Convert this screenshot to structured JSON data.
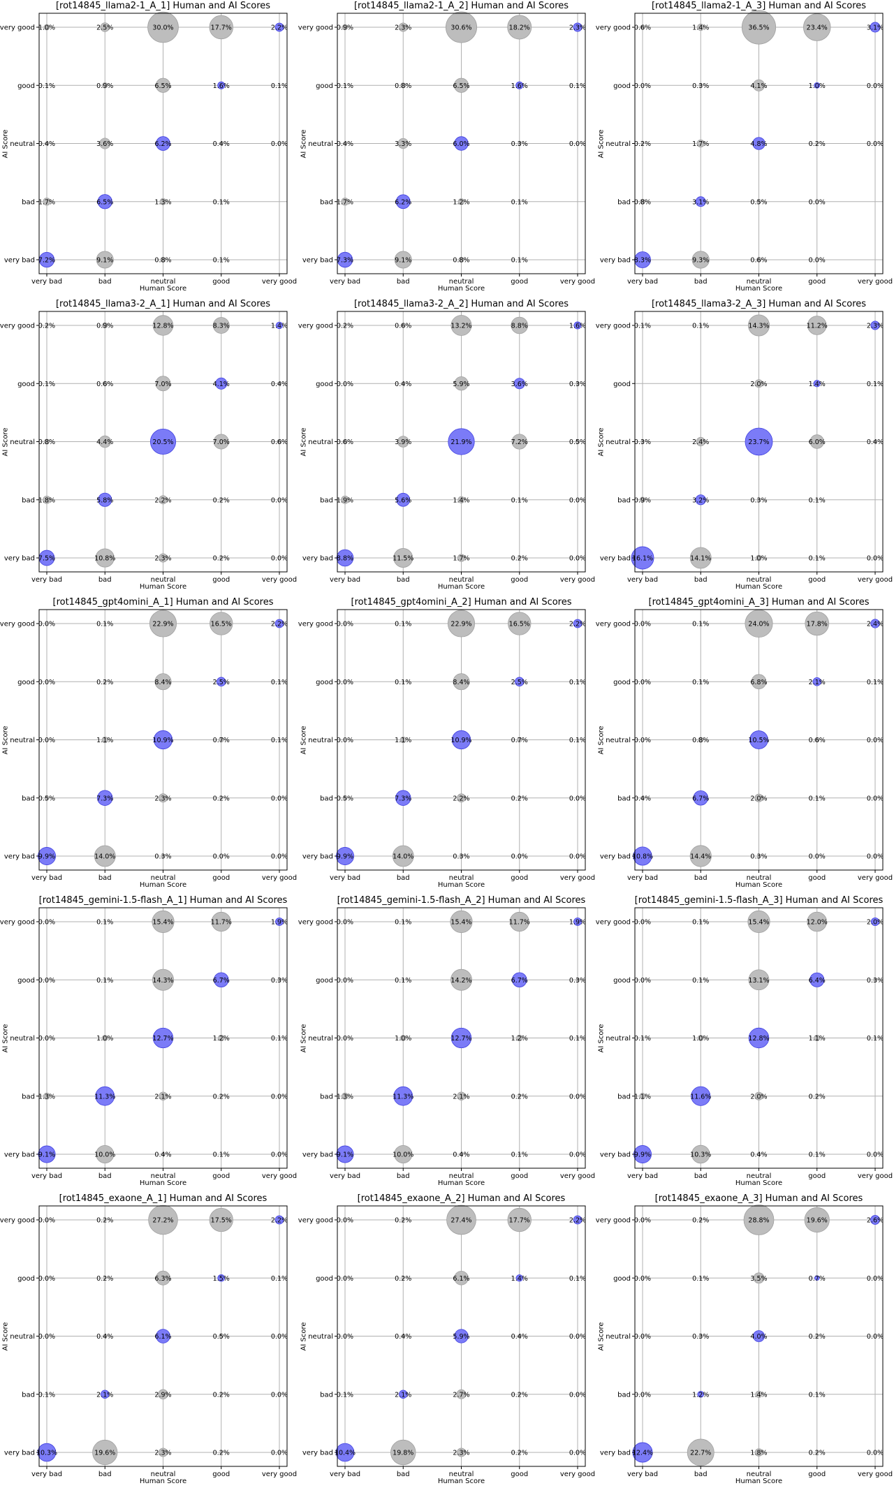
{
  "chart_data": [
    {
      "type": "scatter",
      "title": "[rot14845_llama2-1_A_1] Human and AI Scores",
      "xlabel": "Human Score",
      "ylabel": "AI Score",
      "categories": [
        "very bad",
        "bad",
        "neutral",
        "good",
        "very good"
      ],
      "values": [
        [
          7.2,
          9.1,
          0.8,
          0.1,
          null
        ],
        [
          1.7,
          6.5,
          1.3,
          0.1,
          null
        ],
        [
          0.4,
          3.6,
          6.2,
          0.4,
          0.0
        ],
        [
          0.1,
          0.9,
          6.5,
          1.6,
          0.1
        ],
        [
          1.0,
          2.5,
          30.0,
          17.7,
          2.2
        ]
      ]
    },
    {
      "type": "scatter",
      "title": "[rot14845_llama2-1_A_2] Human and AI Scores",
      "xlabel": "Human Score",
      "ylabel": "AI Score",
      "categories": [
        "very bad",
        "bad",
        "neutral",
        "good",
        "very good"
      ],
      "values": [
        [
          7.3,
          9.1,
          0.8,
          0.1,
          null
        ],
        [
          1.7,
          6.2,
          1.2,
          0.1,
          null
        ],
        [
          0.4,
          3.3,
          6.0,
          0.3,
          0.0
        ],
        [
          0.1,
          0.8,
          6.5,
          1.6,
          0.1
        ],
        [
          0.9,
          2.3,
          30.6,
          18.2,
          2.3
        ]
      ]
    },
    {
      "type": "scatter",
      "title": "[rot14845_llama2-1_A_3] Human and AI Scores",
      "xlabel": "Human Score",
      "ylabel": "AI Score",
      "categories": [
        "very bad",
        "bad",
        "neutral",
        "good",
        "very good"
      ],
      "values": [
        [
          8.3,
          9.3,
          0.6,
          0.0,
          null
        ],
        [
          0.8,
          3.1,
          0.5,
          0.0,
          null
        ],
        [
          0.2,
          1.7,
          4.8,
          0.2,
          0.0
        ],
        [
          0.0,
          0.3,
          4.1,
          1.0,
          0.0
        ],
        [
          0.6,
          1.4,
          36.5,
          23.4,
          3.1
        ]
      ]
    },
    {
      "type": "scatter",
      "title": "[rot14845_llama3-2_A_1] Human and AI Scores",
      "xlabel": "Human Score",
      "ylabel": "AI Score",
      "categories": [
        "very bad",
        "bad",
        "neutral",
        "good",
        "very good"
      ],
      "values": [
        [
          7.5,
          10.8,
          2.3,
          0.2,
          0.0
        ],
        [
          1.8,
          5.8,
          2.2,
          0.2,
          0.0
        ],
        [
          0.8,
          4.4,
          20.5,
          7.0,
          0.6
        ],
        [
          0.1,
          0.6,
          7.0,
          4.1,
          0.4
        ],
        [
          0.2,
          0.9,
          12.8,
          8.3,
          1.4
        ]
      ]
    },
    {
      "type": "scatter",
      "title": "[rot14845_llama3-2_A_2] Human and AI Scores",
      "xlabel": "Human Score",
      "ylabel": "AI Score",
      "categories": [
        "very bad",
        "bad",
        "neutral",
        "good",
        "very good"
      ],
      "values": [
        [
          8.8,
          11.5,
          1.7,
          0.2,
          0.0
        ],
        [
          1.9,
          5.6,
          1.4,
          0.1,
          0.0
        ],
        [
          0.6,
          3.9,
          21.9,
          7.2,
          0.5
        ],
        [
          0.0,
          0.4,
          5.9,
          3.6,
          0.3
        ],
        [
          0.2,
          0.6,
          13.2,
          8.8,
          1.6
        ]
      ]
    },
    {
      "type": "scatter",
      "title": "[rot14845_llama3-2_A_3] Human and AI Scores",
      "xlabel": "Human Score",
      "ylabel": "AI Score",
      "categories": [
        "very bad",
        "bad",
        "neutral",
        "good",
        "very good"
      ],
      "values": [
        [
          16.1,
          14.1,
          1.0,
          0.1,
          0.0
        ],
        [
          0.9,
          3.2,
          0.3,
          0.1,
          null
        ],
        [
          0.3,
          2.4,
          23.7,
          6.0,
          0.4
        ],
        [
          null,
          null,
          2.0,
          1.4,
          0.1
        ],
        [
          0.1,
          0.1,
          14.3,
          11.2,
          2.3
        ]
      ]
    },
    {
      "type": "scatter",
      "title": "[rot14845_gpt4omini_A_1] Human and AI Scores",
      "xlabel": "Human Score",
      "ylabel": "AI Score",
      "categories": [
        "very bad",
        "bad",
        "neutral",
        "good",
        "very good"
      ],
      "values": [
        [
          9.9,
          14.0,
          0.3,
          0.0,
          0.0
        ],
        [
          0.5,
          7.3,
          2.3,
          0.2,
          0.0
        ],
        [
          0.0,
          1.1,
          10.9,
          0.7,
          0.1
        ],
        [
          0.0,
          0.2,
          8.4,
          2.5,
          0.1
        ],
        [
          0.0,
          0.1,
          22.9,
          16.5,
          2.2
        ]
      ]
    },
    {
      "type": "scatter",
      "title": "[rot14845_gpt4omini_A_2] Human and AI Scores",
      "xlabel": "Human Score",
      "ylabel": "AI Score",
      "categories": [
        "very bad",
        "bad",
        "neutral",
        "good",
        "very good"
      ],
      "values": [
        [
          9.9,
          14.0,
          0.3,
          0.0,
          0.0
        ],
        [
          0.5,
          7.3,
          2.2,
          0.2,
          0.0
        ],
        [
          0.0,
          1.1,
          10.9,
          0.7,
          0.1
        ],
        [
          0.0,
          0.1,
          8.4,
          2.5,
          0.1
        ],
        [
          0.0,
          0.1,
          22.9,
          16.5,
          2.2
        ]
      ]
    },
    {
      "type": "scatter",
      "title": "[rot14845_gpt4omini_A_3] Human and AI Scores",
      "xlabel": "Human Score",
      "ylabel": "AI Score",
      "categories": [
        "very bad",
        "bad",
        "neutral",
        "good",
        "very good"
      ],
      "values": [
        [
          10.8,
          14.4,
          0.3,
          0.0,
          0.0
        ],
        [
          0.4,
          6.7,
          2.0,
          0.1,
          0.0
        ],
        [
          0.0,
          0.8,
          10.5,
          0.6,
          0.0
        ],
        [
          0.0,
          0.1,
          6.8,
          2.1,
          0.1
        ],
        [
          0.0,
          0.1,
          24.0,
          17.8,
          2.4
        ]
      ]
    },
    {
      "type": "scatter",
      "title": "[rot14845_gemini-1.5-flash_A_1] Human and AI Scores",
      "xlabel": "Human Score",
      "ylabel": "AI Score",
      "categories": [
        "very bad",
        "bad",
        "neutral",
        "good",
        "very good"
      ],
      "values": [
        [
          9.1,
          10.0,
          0.4,
          0.1,
          0.0
        ],
        [
          1.3,
          11.3,
          2.1,
          0.2,
          0.0
        ],
        [
          0.0,
          1.0,
          12.7,
          1.2,
          0.1
        ],
        [
          0.0,
          0.1,
          14.3,
          6.7,
          0.3
        ],
        [
          0.0,
          0.1,
          15.4,
          11.7,
          1.9
        ]
      ]
    },
    {
      "type": "scatter",
      "title": "[rot14845_gemini-1.5-flash_A_2] Human and AI Scores",
      "xlabel": "Human Score",
      "ylabel": "AI Score",
      "categories": [
        "very bad",
        "bad",
        "neutral",
        "good",
        "very good"
      ],
      "values": [
        [
          9.1,
          10.0,
          0.4,
          0.1,
          0.0
        ],
        [
          1.3,
          11.3,
          2.1,
          0.2,
          0.0
        ],
        [
          0.0,
          1.0,
          12.7,
          1.2,
          0.1
        ],
        [
          0.0,
          0.1,
          14.2,
          6.7,
          0.3
        ],
        [
          0.0,
          0.1,
          15.4,
          11.7,
          1.9
        ]
      ]
    },
    {
      "type": "scatter",
      "title": "[rot14845_gemini-1.5-flash_A_3] Human and AI Scores",
      "xlabel": "Human Score",
      "ylabel": "AI Score",
      "categories": [
        "very bad",
        "bad",
        "neutral",
        "good",
        "very good"
      ],
      "values": [
        [
          9.9,
          10.3,
          0.4,
          0.1,
          0.0
        ],
        [
          1.1,
          11.6,
          2.0,
          0.2,
          null
        ],
        [
          0.1,
          1.0,
          12.8,
          1.1,
          0.1
        ],
        [
          0.0,
          0.1,
          13.1,
          6.4,
          0.3
        ],
        [
          0.0,
          0.1,
          15.4,
          12.0,
          2.0
        ]
      ]
    },
    {
      "type": "scatter",
      "title": "[rot14845_exaone_A_1] Human and AI Scores",
      "xlabel": "Human Score",
      "ylabel": "AI Score",
      "categories": [
        "very bad",
        "bad",
        "neutral",
        "good",
        "very good"
      ],
      "values": [
        [
          10.3,
          19.6,
          2.3,
          0.2,
          0.0
        ],
        [
          0.1,
          2.1,
          2.9,
          0.2,
          0.0
        ],
        [
          0.0,
          0.4,
          6.1,
          0.5,
          0.0
        ],
        [
          0.0,
          0.2,
          6.3,
          1.5,
          0.1
        ],
        [
          0.0,
          0.2,
          27.2,
          17.5,
          2.2
        ]
      ]
    },
    {
      "type": "scatter",
      "title": "[rot14845_exaone_A_2] Human and AI Scores",
      "xlabel": "Human Score",
      "ylabel": "AI Score",
      "categories": [
        "very bad",
        "bad",
        "neutral",
        "good",
        "very good"
      ],
      "values": [
        [
          10.4,
          19.8,
          2.3,
          0.2,
          0.0
        ],
        [
          0.1,
          2.1,
          2.7,
          0.2,
          0.0
        ],
        [
          0.0,
          0.4,
          5.9,
          0.4,
          0.0
        ],
        [
          0.0,
          0.2,
          6.1,
          1.4,
          0.1
        ],
        [
          0.0,
          0.2,
          27.4,
          17.7,
          2.2
        ]
      ]
    },
    {
      "type": "scatter",
      "title": "[rot14845_exaone_A_3] Human and AI Scores",
      "xlabel": "Human Score",
      "ylabel": "AI Score",
      "categories": [
        "very bad",
        "bad",
        "neutral",
        "good",
        "very good"
      ],
      "values": [
        [
          12.4,
          22.7,
          1.8,
          0.2,
          0.0
        ],
        [
          0.0,
          1.2,
          1.4,
          0.1,
          null
        ],
        [
          0.0,
          0.3,
          4.0,
          0.2,
          0.0
        ],
        [
          0.0,
          0.1,
          3.5,
          0.7,
          0.0
        ],
        [
          0.0,
          0.2,
          28.8,
          19.6,
          2.6
        ]
      ]
    }
  ],
  "colors": {
    "diagonal": "#7b7bf7",
    "diagonal_edge": "#4040e0",
    "off_diagonal": "#bdbdbd",
    "off_diagonal_edge": "#a0a0a0",
    "grid": "#b0b0b0"
  }
}
